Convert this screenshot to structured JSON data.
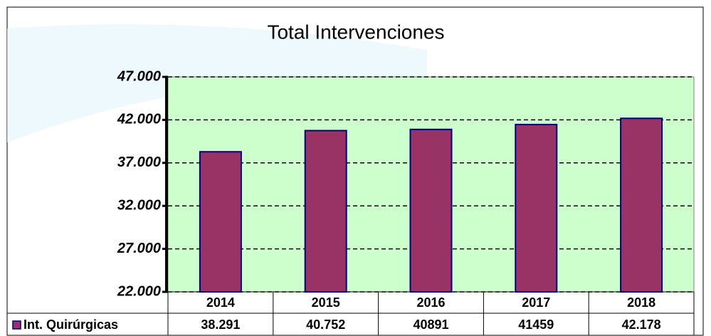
{
  "chart_data": {
    "type": "bar",
    "title": "Total Intervenciones",
    "categories": [
      "2014",
      "2015",
      "2016",
      "2017",
      "2018"
    ],
    "series": [
      {
        "name": "Int. Quirúrgicas",
        "color": "#993366",
        "values": [
          38291,
          40752,
          40891,
          41459,
          42178
        ],
        "value_labels": [
          "38.291",
          "40.752",
          "40891",
          "41459",
          "42.178"
        ]
      }
    ],
    "ylim": [
      22000,
      47000
    ],
    "yticks": [
      {
        "value": 22000,
        "label": "22.000"
      },
      {
        "value": 27000,
        "label": "27.000"
      },
      {
        "value": 32000,
        "label": "32.000"
      },
      {
        "value": 37000,
        "label": "37.000"
      },
      {
        "value": 42000,
        "label": "42.000"
      },
      {
        "value": 47000,
        "label": "47.000"
      }
    ],
    "grid": true,
    "plot_background": "#ccffcc"
  }
}
